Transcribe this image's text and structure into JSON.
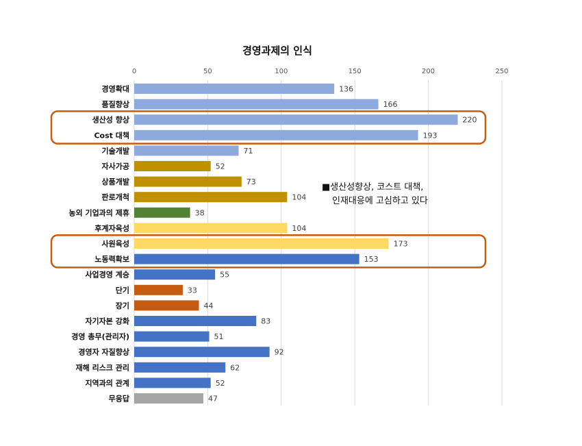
{
  "chart_data": {
    "type": "bar",
    "orientation": "horizontal",
    "title": "경영과제의 인식",
    "xlim": [
      0,
      250
    ],
    "xticks": [
      0,
      50,
      100,
      150,
      200,
      250
    ],
    "grid": true,
    "legend": "none",
    "categories": [
      "경영확대",
      "품질향상",
      "생산성 향상",
      "Cost 대책",
      "기술개발",
      "자사가공",
      "상품개발",
      "판로개척",
      "농외 기업과의 제휴",
      "후계자육성",
      "사원육성",
      "노동력확보",
      "사업경영 계승",
      "단기",
      "장기",
      "자기자본 강화",
      "경영 총무(관리자)",
      "경영자 자질향상",
      "재해 리스크 관리",
      "지역과의 관계",
      "무응답"
    ],
    "values": [
      136,
      166,
      220,
      193,
      71,
      52,
      73,
      104,
      38,
      104,
      173,
      153,
      55,
      33,
      44,
      83,
      51,
      92,
      62,
      52,
      47
    ],
    "colors": [
      "#8EA9DB",
      "#8EA9DB",
      "#8EA9DB",
      "#8EA9DB",
      "#8EA9DB",
      "#BF9000",
      "#BF9000",
      "#BF9000",
      "#548235",
      "#FFD966",
      "#FFD966",
      "#4472C4",
      "#4472C4",
      "#C55A11",
      "#C55A11",
      "#4472C4",
      "#4472C4",
      "#4472C4",
      "#4472C4",
      "#4472C4",
      "#A5A5A5"
    ],
    "highlight_groups": [
      {
        "from": 2,
        "to": 3,
        "color": "#C55A11"
      },
      {
        "from": 10,
        "to": 11,
        "color": "#C55A11"
      }
    ],
    "annotation": {
      "lines": [
        "■생산성향상, 코스트 대책,",
        "인재대응에 고심하고 있다"
      ]
    }
  }
}
